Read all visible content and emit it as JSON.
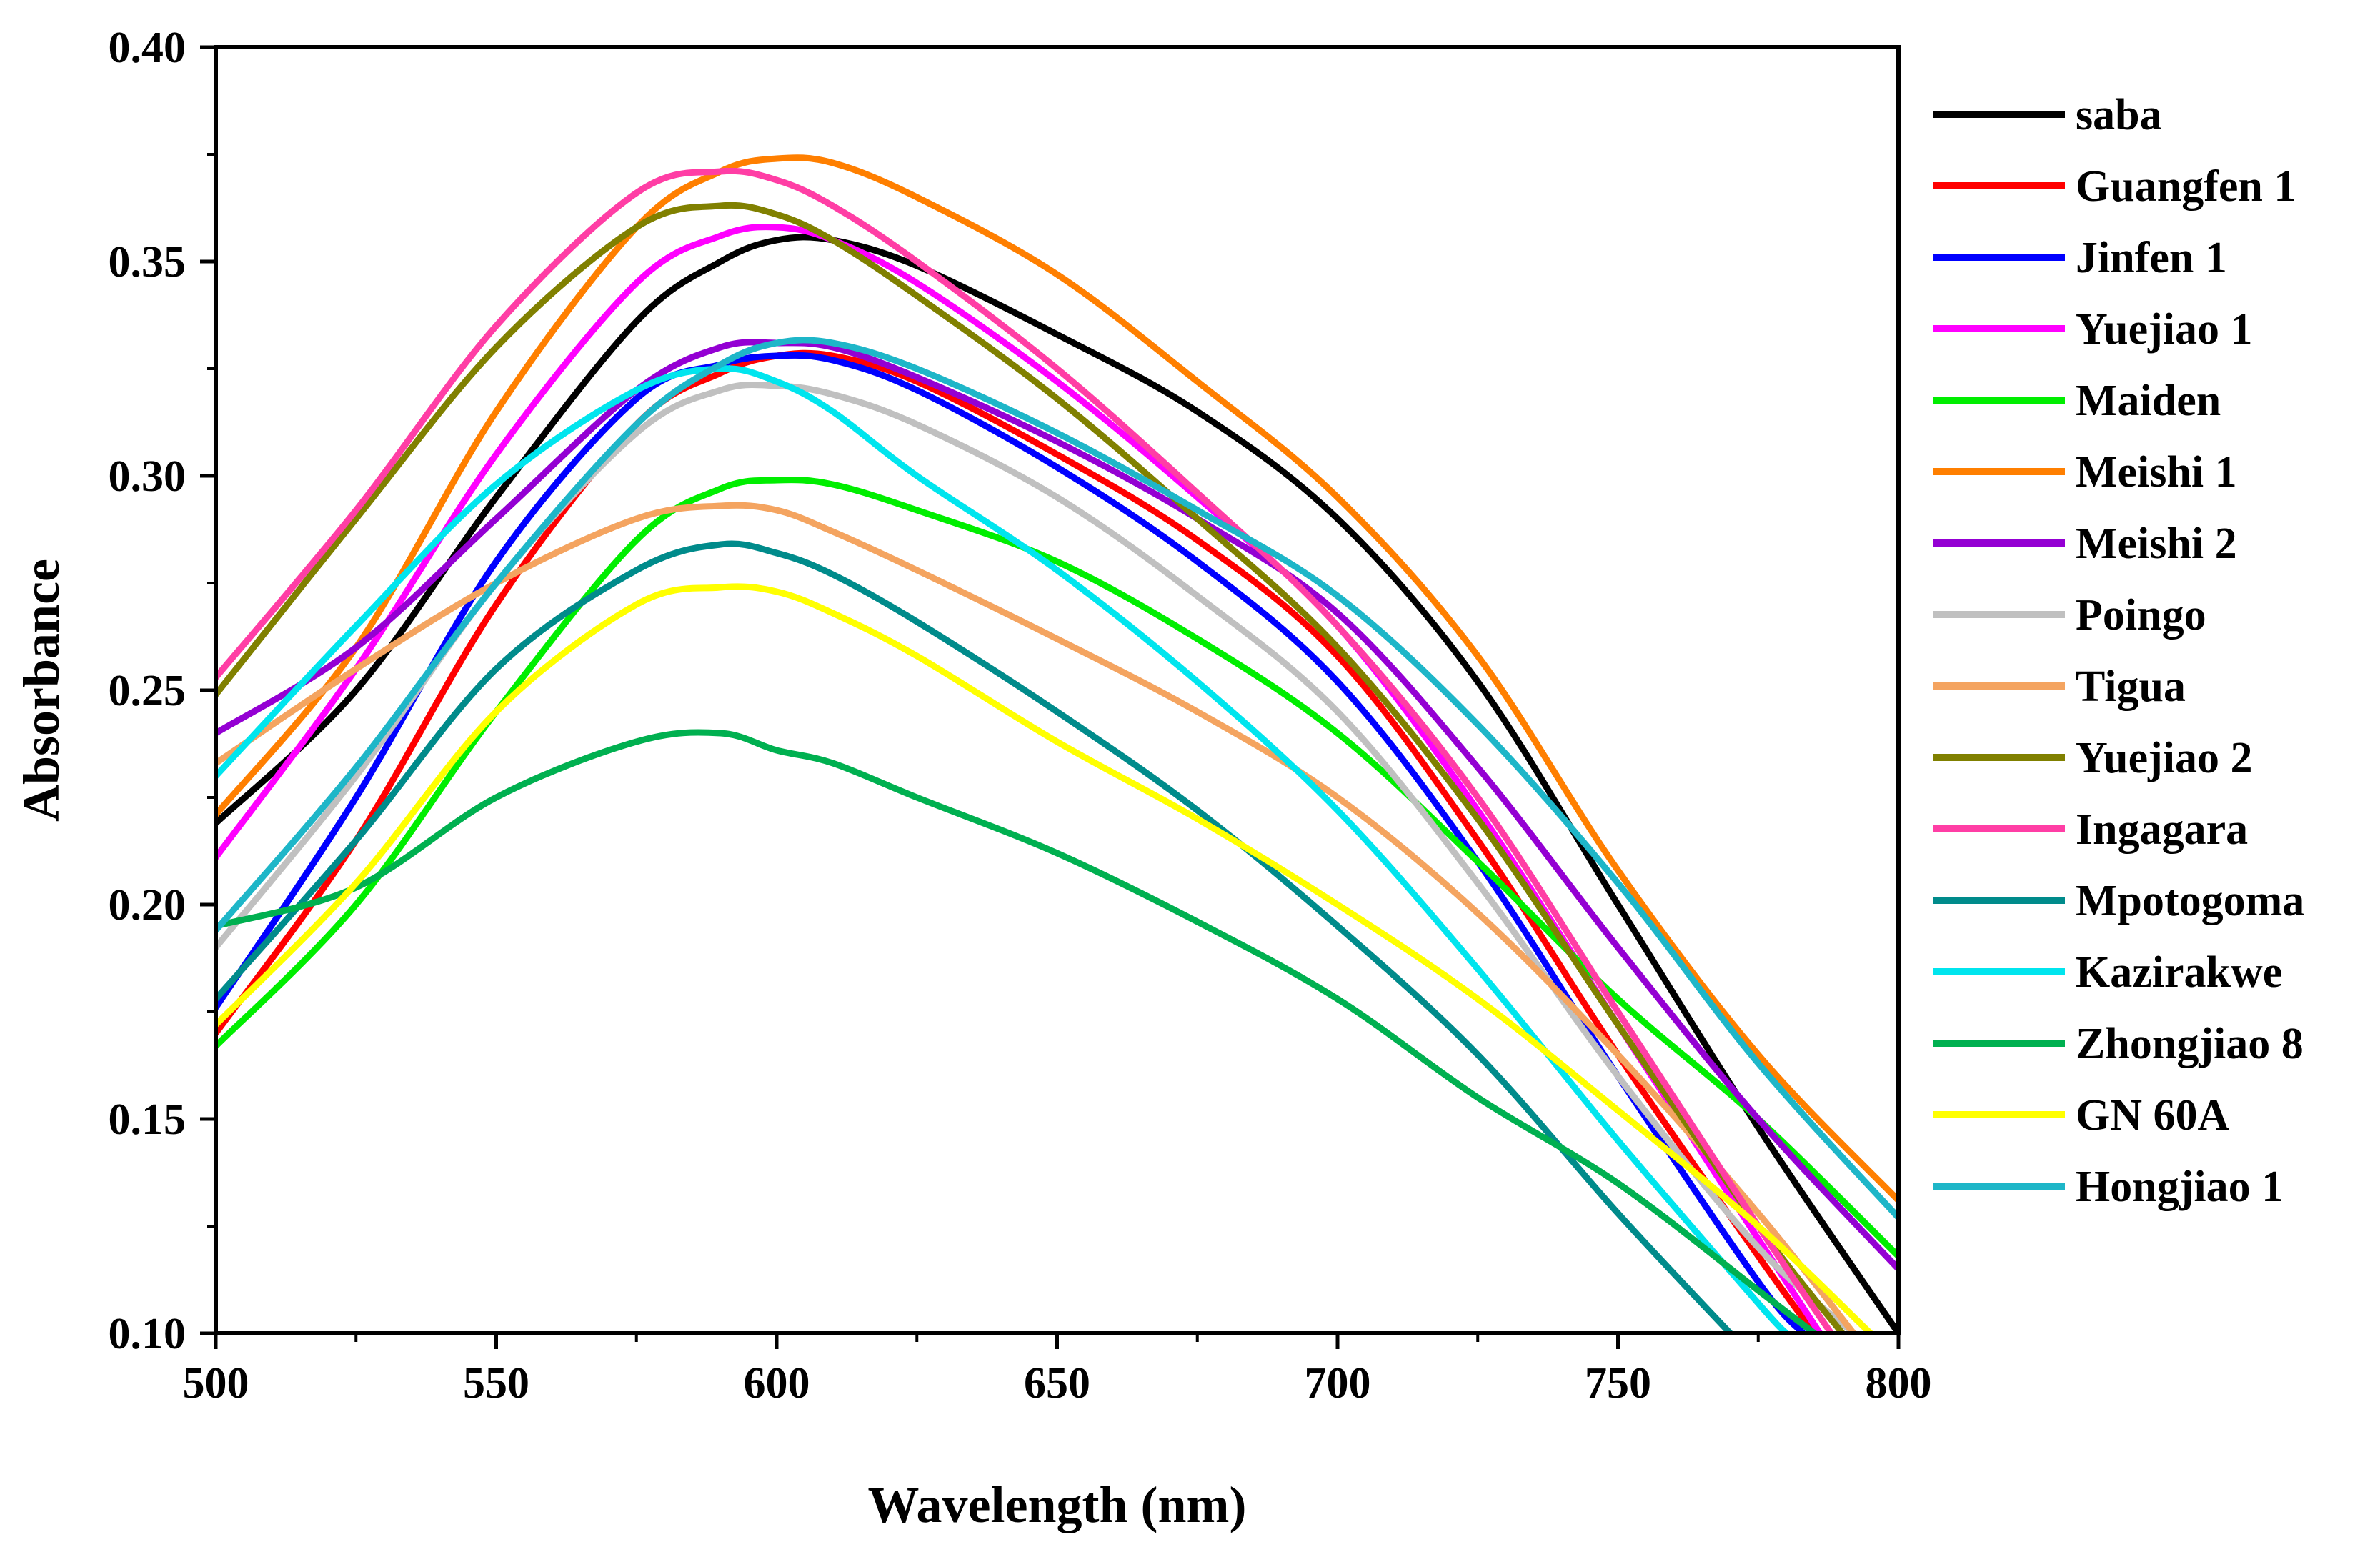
{
  "chart_data": {
    "type": "line",
    "title": "",
    "xlabel": "Wavelength (nm)",
    "ylabel": "Absorbance",
    "xlim": [
      500,
      800
    ],
    "ylim": [
      0.1,
      0.4
    ],
    "xticks": [
      500,
      550,
      600,
      650,
      700,
      750,
      800
    ],
    "xtick_labels": [
      "500",
      "550",
      "600",
      "650",
      "700",
      "750",
      "800"
    ],
    "yticks": [
      0.1,
      0.15,
      0.2,
      0.25,
      0.3,
      0.35,
      0.4
    ],
    "ytick_labels": [
      "0.10",
      "0.15",
      "0.20",
      "0.25",
      "0.30",
      "0.35",
      "0.40"
    ],
    "grid": false,
    "legend_position": "right",
    "series": [
      {
        "name": "saba",
        "color": "#000000",
        "x": [
          500,
          525,
          550,
          575,
          590,
          600,
          610,
          625,
          650,
          675,
          700,
          725,
          750,
          775,
          800
        ],
        "y": [
          0.219,
          0.25,
          0.295,
          0.336,
          0.35,
          0.355,
          0.355,
          0.349,
          0.333,
          0.315,
          0.29,
          0.252,
          0.2,
          0.148,
          0.1
        ]
      },
      {
        "name": "Guangfen 1",
        "color": "#ff0000",
        "x": [
          500,
          525,
          550,
          575,
          590,
          600,
          610,
          625,
          650,
          675,
          700,
          725,
          750,
          775,
          785
        ],
        "y": [
          0.17,
          0.215,
          0.27,
          0.312,
          0.324,
          0.328,
          0.328,
          0.322,
          0.305,
          0.285,
          0.258,
          0.215,
          0.165,
          0.118,
          0.1
        ]
      },
      {
        "name": "Jinfen 1",
        "color": "#0000ff",
        "x": [
          500,
          525,
          550,
          575,
          590,
          600,
          610,
          625,
          650,
          675,
          700,
          725,
          750,
          775,
          783
        ],
        "y": [
          0.176,
          0.225,
          0.28,
          0.318,
          0.326,
          0.328,
          0.327,
          0.32,
          0.302,
          0.28,
          0.252,
          0.21,
          0.16,
          0.112,
          0.1
        ]
      },
      {
        "name": "Yuejiao 1",
        "color": "#ff00ff",
        "x": [
          500,
          525,
          550,
          575,
          590,
          600,
          610,
          625,
          650,
          675,
          700,
          725,
          750,
          775,
          786
        ],
        "y": [
          0.211,
          0.255,
          0.305,
          0.345,
          0.356,
          0.358,
          0.355,
          0.345,
          0.322,
          0.295,
          0.265,
          0.222,
          0.172,
          0.122,
          0.1
        ]
      },
      {
        "name": "Maiden",
        "color": "#00ee00",
        "x": [
          500,
          525,
          550,
          575,
          590,
          600,
          610,
          625,
          650,
          675,
          700,
          725,
          750,
          775,
          800
        ],
        "y": [
          0.167,
          0.2,
          0.245,
          0.285,
          0.297,
          0.299,
          0.298,
          0.292,
          0.28,
          0.262,
          0.24,
          0.21,
          0.178,
          0.15,
          0.118
        ]
      },
      {
        "name": "Meishi 1",
        "color": "#ff7f00",
        "x": [
          500,
          525,
          550,
          575,
          590,
          600,
          610,
          625,
          650,
          675,
          700,
          725,
          750,
          775,
          800
        ],
        "y": [
          0.221,
          0.26,
          0.315,
          0.358,
          0.371,
          0.374,
          0.373,
          0.365,
          0.347,
          0.322,
          0.295,
          0.258,
          0.208,
          0.165,
          0.131
        ]
      },
      {
        "name": "Meishi 2",
        "color": "#9400d3",
        "x": [
          500,
          525,
          550,
          575,
          590,
          600,
          610,
          625,
          650,
          675,
          700,
          725,
          750,
          775,
          800
        ],
        "y": [
          0.24,
          0.26,
          0.29,
          0.32,
          0.33,
          0.331,
          0.33,
          0.323,
          0.308,
          0.29,
          0.268,
          0.232,
          0.19,
          0.15,
          0.115
        ]
      },
      {
        "name": "Poingo",
        "color": "#c0c0c0",
        "x": [
          500,
          525,
          550,
          575,
          590,
          600,
          610,
          625,
          650,
          675,
          700,
          725,
          750,
          775,
          792
        ],
        "y": [
          0.19,
          0.23,
          0.275,
          0.31,
          0.32,
          0.321,
          0.319,
          0.312,
          0.295,
          0.272,
          0.245,
          0.205,
          0.16,
          0.12,
          0.1
        ]
      },
      {
        "name": "Tigua",
        "color": "#f4a460",
        "x": [
          500,
          525,
          550,
          575,
          590,
          600,
          610,
          625,
          650,
          675,
          700,
          725,
          750,
          775,
          792
        ],
        "y": [
          0.233,
          0.255,
          0.275,
          0.29,
          0.293,
          0.292,
          0.287,
          0.278,
          0.262,
          0.245,
          0.225,
          0.198,
          0.165,
          0.128,
          0.1
        ]
      },
      {
        "name": "Yuejiao 2",
        "color": "#808000",
        "x": [
          500,
          525,
          550,
          575,
          590,
          600,
          610,
          625,
          650,
          675,
          700,
          725,
          750,
          775,
          790
        ],
        "y": [
          0.249,
          0.29,
          0.33,
          0.358,
          0.363,
          0.361,
          0.355,
          0.342,
          0.318,
          0.29,
          0.26,
          0.22,
          0.172,
          0.125,
          0.1
        ]
      },
      {
        "name": "Ingagara",
        "color": "#ff3ea5",
        "x": [
          500,
          525,
          550,
          575,
          590,
          600,
          610,
          625,
          650,
          675,
          700,
          725,
          750,
          775,
          788
        ],
        "y": [
          0.253,
          0.292,
          0.335,
          0.366,
          0.371,
          0.369,
          0.363,
          0.35,
          0.325,
          0.296,
          0.265,
          0.225,
          0.175,
          0.125,
          0.1
        ]
      },
      {
        "name": "Mpotogoma",
        "color": "#008b8b",
        "x": [
          500,
          525,
          550,
          575,
          590,
          600,
          610,
          625,
          650,
          675,
          700,
          725,
          750,
          770
        ],
        "y": [
          0.178,
          0.215,
          0.255,
          0.278,
          0.284,
          0.282,
          0.277,
          0.266,
          0.245,
          0.222,
          0.195,
          0.165,
          0.128,
          0.1
        ]
      },
      {
        "name": "Kazirakwe",
        "color": "#00e5ee",
        "x": [
          500,
          525,
          550,
          575,
          590,
          600,
          610,
          625,
          650,
          675,
          700,
          725,
          750,
          775,
          780
        ],
        "y": [
          0.23,
          0.265,
          0.298,
          0.32,
          0.325,
          0.322,
          0.315,
          0.3,
          0.278,
          0.252,
          0.222,
          0.185,
          0.145,
          0.107,
          0.1
        ]
      },
      {
        "name": "Zhongjiao 8",
        "color": "#00b050",
        "x": [
          500,
          525,
          550,
          575,
          590,
          600,
          610,
          625,
          650,
          675,
          700,
          725,
          750,
          775,
          785
        ],
        "y": [
          0.195,
          0.204,
          0.225,
          0.238,
          0.24,
          0.236,
          0.233,
          0.225,
          0.212,
          0.196,
          0.178,
          0.155,
          0.135,
          0.11,
          0.1
        ]
      },
      {
        "name": "GN 60A",
        "color": "#ffff00",
        "x": [
          500,
          525,
          550,
          575,
          590,
          600,
          610,
          625,
          650,
          675,
          700,
          725,
          750,
          775,
          795
        ],
        "y": [
          0.172,
          0.205,
          0.245,
          0.27,
          0.274,
          0.273,
          0.268,
          0.258,
          0.238,
          0.22,
          0.2,
          0.178,
          0.152,
          0.125,
          0.1
        ]
      },
      {
        "name": "Hongjiao 1",
        "color": "#1eb6c8",
        "x": [
          500,
          525,
          550,
          575,
          590,
          600,
          610,
          625,
          650,
          675,
          700,
          725,
          750,
          775,
          800
        ],
        "y": [
          0.194,
          0.232,
          0.275,
          0.312,
          0.326,
          0.331,
          0.331,
          0.325,
          0.31,
          0.292,
          0.272,
          0.242,
          0.205,
          0.163,
          0.127
        ]
      }
    ]
  }
}
